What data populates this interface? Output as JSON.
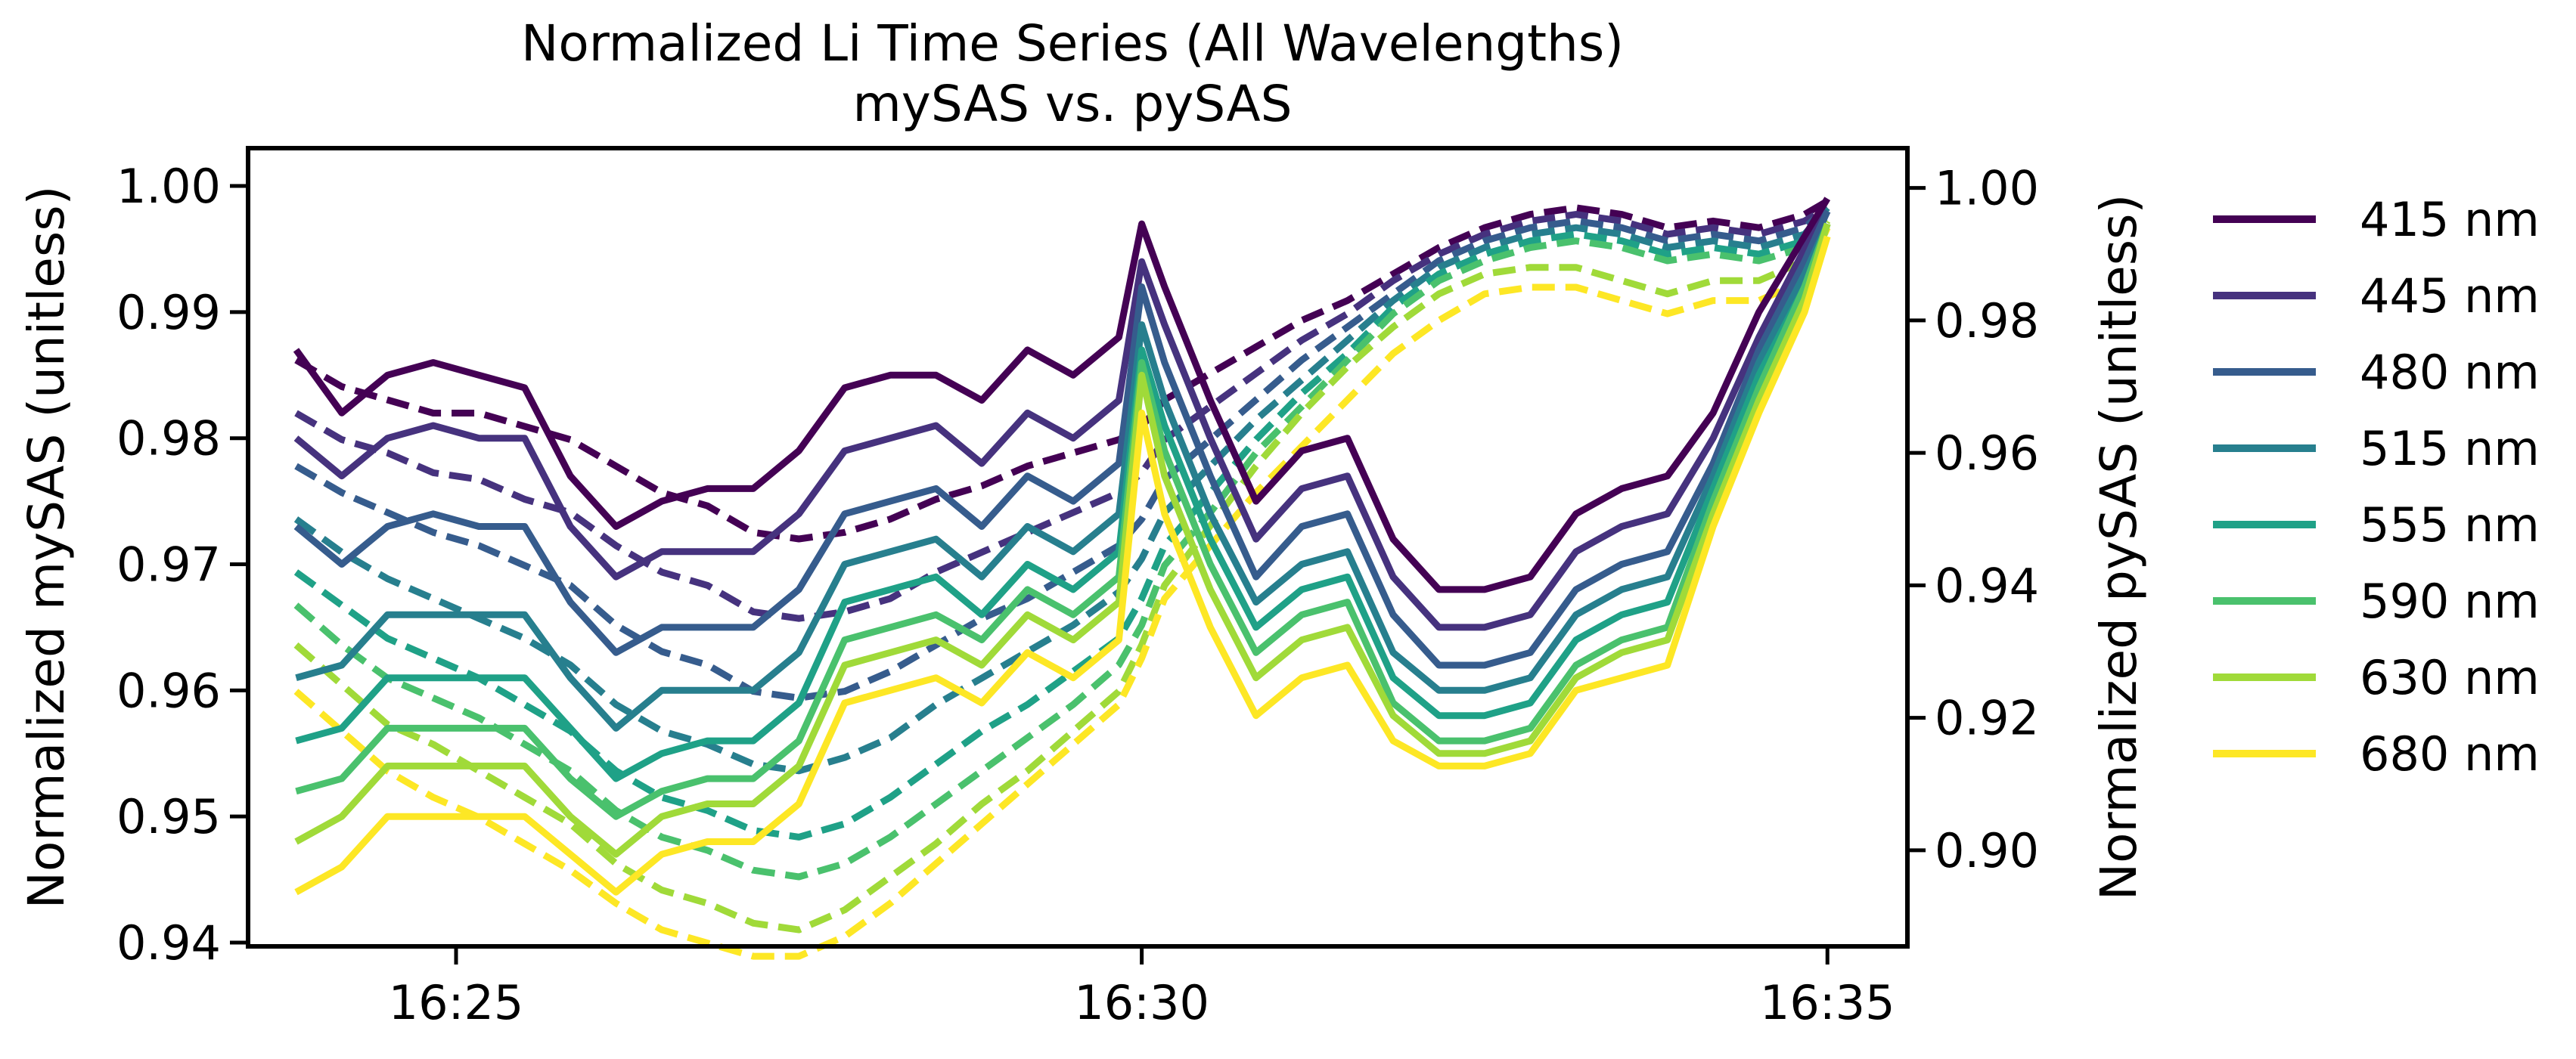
{
  "chart_data": {
    "type": "line",
    "title": "Normalized Li Time Series (All Wavelengths)",
    "subtitle": "mySAS vs. pySAS",
    "xlabel": "",
    "ylabel": "Normalized mySAS (unitless)",
    "ylabel_right": "Normalized pySAS (unitless)",
    "x_ticks": [
      "16:25",
      "16:30",
      "16:35"
    ],
    "y_ticks_left": [
      "0.94",
      "0.95",
      "0.96",
      "0.97",
      "0.98",
      "0.99",
      "1.00"
    ],
    "y_ticks_right": [
      "0.90",
      "0.92",
      "0.94",
      "0.96",
      "0.98",
      "1.00"
    ],
    "xlim": [
      "16:23:29",
      "16:35:35"
    ],
    "ylim_left": [
      0.9397,
      1.003
    ],
    "ylim_right": [
      0.8855,
      1.006
    ],
    "grid": false,
    "legend_position": "outside-right",
    "line_styles": {
      "mySAS": "solid",
      "pySAS": "dashed"
    },
    "x": [
      "16:23:50",
      "16:24:10",
      "16:24:30",
      "16:24:50",
      "16:25:10",
      "16:25:30",
      "16:25:50",
      "16:26:10",
      "16:26:30",
      "16:26:50",
      "16:27:10",
      "16:27:30",
      "16:27:50",
      "16:28:10",
      "16:28:30",
      "16:28:50",
      "16:29:10",
      "16:29:30",
      "16:29:50",
      "16:30:00",
      "16:30:10",
      "16:30:30",
      "16:30:50",
      "16:31:10",
      "16:31:30",
      "16:31:50",
      "16:32:10",
      "16:32:30",
      "16:32:50",
      "16:33:10",
      "16:33:30",
      "16:33:50",
      "16:34:10",
      "16:34:30",
      "16:34:50",
      "16:35:00"
    ],
    "series": [
      {
        "name": "415 nm",
        "color": "#440154",
        "mysas": [
          0.987,
          0.982,
          0.985,
          0.986,
          0.985,
          0.984,
          0.977,
          0.973,
          0.975,
          0.976,
          0.976,
          0.979,
          0.984,
          0.985,
          0.985,
          0.983,
          0.987,
          0.985,
          0.988,
          0.997,
          0.992,
          0.983,
          0.975,
          0.979,
          0.98,
          0.972,
          0.968,
          0.968,
          0.969,
          0.974,
          0.976,
          0.977,
          0.982,
          0.99,
          0.996,
          0.999
        ],
        "pysas": [
          0.974,
          0.97,
          0.968,
          0.966,
          0.966,
          0.964,
          0.962,
          0.958,
          0.954,
          0.952,
          0.948,
          0.947,
          0.948,
          0.95,
          0.953,
          0.955,
          0.958,
          0.96,
          0.962,
          0.964,
          0.968,
          0.972,
          0.976,
          0.98,
          0.983,
          0.987,
          0.991,
          0.994,
          0.996,
          0.997,
          0.996,
          0.994,
          0.995,
          0.994,
          0.996,
          0.998
        ]
      },
      {
        "name": "445 nm",
        "color": "#46327e",
        "mysas": [
          0.98,
          0.977,
          0.98,
          0.981,
          0.98,
          0.98,
          0.973,
          0.969,
          0.971,
          0.971,
          0.971,
          0.974,
          0.979,
          0.98,
          0.981,
          0.978,
          0.982,
          0.98,
          0.983,
          0.994,
          0.989,
          0.98,
          0.972,
          0.976,
          0.977,
          0.969,
          0.965,
          0.965,
          0.966,
          0.971,
          0.973,
          0.974,
          0.98,
          0.988,
          0.995,
          0.998
        ],
        "pysas": [
          0.966,
          0.962,
          0.96,
          0.957,
          0.956,
          0.953,
          0.951,
          0.946,
          0.942,
          0.94,
          0.936,
          0.935,
          0.936,
          0.938,
          0.942,
          0.945,
          0.948,
          0.951,
          0.954,
          0.957,
          0.962,
          0.967,
          0.972,
          0.977,
          0.981,
          0.986,
          0.99,
          0.993,
          0.995,
          0.996,
          0.995,
          0.993,
          0.994,
          0.993,
          0.995,
          0.997
        ]
      },
      {
        "name": "480 nm",
        "color": "#365c8d",
        "mysas": [
          0.973,
          0.97,
          0.973,
          0.974,
          0.973,
          0.973,
          0.967,
          0.963,
          0.965,
          0.965,
          0.965,
          0.968,
          0.974,
          0.975,
          0.976,
          0.973,
          0.977,
          0.975,
          0.978,
          0.992,
          0.986,
          0.977,
          0.969,
          0.973,
          0.974,
          0.966,
          0.962,
          0.962,
          0.963,
          0.968,
          0.97,
          0.971,
          0.978,
          0.987,
          0.994,
          0.998
        ],
        "pysas": [
          0.958,
          0.954,
          0.951,
          0.948,
          0.946,
          0.943,
          0.94,
          0.934,
          0.93,
          0.928,
          0.924,
          0.923,
          0.924,
          0.927,
          0.931,
          0.935,
          0.938,
          0.942,
          0.946,
          0.95,
          0.956,
          0.962,
          0.968,
          0.974,
          0.979,
          0.984,
          0.989,
          0.992,
          0.994,
          0.995,
          0.994,
          0.992,
          0.993,
          0.992,
          0.994,
          0.997
        ]
      },
      {
        "name": "515 nm",
        "color": "#277f8e",
        "mysas": [
          0.961,
          0.962,
          0.966,
          0.966,
          0.966,
          0.966,
          0.961,
          0.957,
          0.96,
          0.96,
          0.96,
          0.963,
          0.97,
          0.971,
          0.972,
          0.969,
          0.973,
          0.971,
          0.974,
          0.989,
          0.983,
          0.974,
          0.967,
          0.97,
          0.971,
          0.963,
          0.96,
          0.96,
          0.961,
          0.966,
          0.968,
          0.969,
          0.977,
          0.986,
          0.993,
          0.997
        ],
        "pysas": [
          0.95,
          0.945,
          0.941,
          0.938,
          0.935,
          0.932,
          0.928,
          0.922,
          0.918,
          0.916,
          0.913,
          0.912,
          0.914,
          0.917,
          0.922,
          0.926,
          0.93,
          0.934,
          0.939,
          0.944,
          0.951,
          0.958,
          0.965,
          0.971,
          0.977,
          0.983,
          0.988,
          0.991,
          0.993,
          0.994,
          0.993,
          0.991,
          0.992,
          0.991,
          0.993,
          0.997
        ]
      },
      {
        "name": "555 nm",
        "color": "#1fa187",
        "mysas": [
          0.956,
          0.957,
          0.961,
          0.961,
          0.961,
          0.961,
          0.957,
          0.953,
          0.955,
          0.956,
          0.956,
          0.959,
          0.967,
          0.968,
          0.969,
          0.966,
          0.97,
          0.968,
          0.971,
          0.987,
          0.981,
          0.972,
          0.965,
          0.968,
          0.969,
          0.961,
          0.958,
          0.958,
          0.959,
          0.964,
          0.966,
          0.967,
          0.976,
          0.985,
          0.992,
          0.997
        ],
        "pysas": [
          0.942,
          0.937,
          0.932,
          0.929,
          0.926,
          0.922,
          0.918,
          0.912,
          0.908,
          0.906,
          0.903,
          0.902,
          0.904,
          0.908,
          0.913,
          0.918,
          0.922,
          0.927,
          0.932,
          0.938,
          0.946,
          0.954,
          0.962,
          0.969,
          0.975,
          0.982,
          0.987,
          0.99,
          0.992,
          0.993,
          0.992,
          0.99,
          0.991,
          0.99,
          0.992,
          0.996
        ]
      },
      {
        "name": "590 nm",
        "color": "#4ac16d",
        "mysas": [
          0.952,
          0.953,
          0.957,
          0.957,
          0.957,
          0.957,
          0.953,
          0.95,
          0.952,
          0.953,
          0.953,
          0.956,
          0.964,
          0.965,
          0.966,
          0.964,
          0.968,
          0.966,
          0.969,
          0.986,
          0.979,
          0.97,
          0.963,
          0.966,
          0.967,
          0.959,
          0.956,
          0.956,
          0.957,
          0.962,
          0.964,
          0.965,
          0.975,
          0.984,
          0.992,
          0.997
        ],
        "pysas": [
          0.937,
          0.931,
          0.926,
          0.923,
          0.92,
          0.916,
          0.912,
          0.906,
          0.902,
          0.9,
          0.897,
          0.896,
          0.898,
          0.902,
          0.907,
          0.912,
          0.917,
          0.922,
          0.928,
          0.934,
          0.943,
          0.951,
          0.96,
          0.967,
          0.974,
          0.981,
          0.986,
          0.989,
          0.991,
          0.992,
          0.991,
          0.989,
          0.99,
          0.989,
          0.991,
          0.996
        ]
      },
      {
        "name": "630 nm",
        "color": "#a0da39",
        "mysas": [
          0.948,
          0.95,
          0.954,
          0.954,
          0.954,
          0.954,
          0.95,
          0.947,
          0.95,
          0.951,
          0.951,
          0.954,
          0.962,
          0.963,
          0.964,
          0.962,
          0.966,
          0.964,
          0.967,
          0.985,
          0.977,
          0.968,
          0.961,
          0.964,
          0.965,
          0.958,
          0.955,
          0.955,
          0.956,
          0.961,
          0.963,
          0.964,
          0.974,
          0.983,
          0.991,
          0.997
        ],
        "pysas": [
          0.931,
          0.925,
          0.919,
          0.916,
          0.912,
          0.908,
          0.904,
          0.898,
          0.894,
          0.892,
          0.889,
          0.888,
          0.891,
          0.896,
          0.901,
          0.907,
          0.912,
          0.918,
          0.924,
          0.931,
          0.94,
          0.949,
          0.958,
          0.966,
          0.973,
          0.979,
          0.984,
          0.987,
          0.988,
          0.988,
          0.986,
          0.984,
          0.986,
          0.986,
          0.989,
          0.995
        ]
      },
      {
        "name": "680 nm",
        "color": "#fde725",
        "mysas": [
          0.944,
          0.946,
          0.95,
          0.95,
          0.95,
          0.95,
          0.947,
          0.944,
          0.947,
          0.948,
          0.948,
          0.951,
          0.959,
          0.96,
          0.961,
          0.959,
          0.963,
          0.961,
          0.964,
          0.982,
          0.974,
          0.965,
          0.958,
          0.961,
          0.962,
          0.956,
          0.954,
          0.954,
          0.955,
          0.96,
          0.961,
          0.962,
          0.973,
          0.982,
          0.99,
          0.996
        ],
        "pysas": [
          0.924,
          0.918,
          0.912,
          0.908,
          0.905,
          0.901,
          0.897,
          0.892,
          0.888,
          0.886,
          0.884,
          0.884,
          0.887,
          0.892,
          0.898,
          0.904,
          0.91,
          0.916,
          0.922,
          0.929,
          0.938,
          0.946,
          0.954,
          0.961,
          0.968,
          0.975,
          0.98,
          0.984,
          0.985,
          0.985,
          0.983,
          0.981,
          0.983,
          0.983,
          0.986,
          0.994
        ]
      }
    ]
  }
}
